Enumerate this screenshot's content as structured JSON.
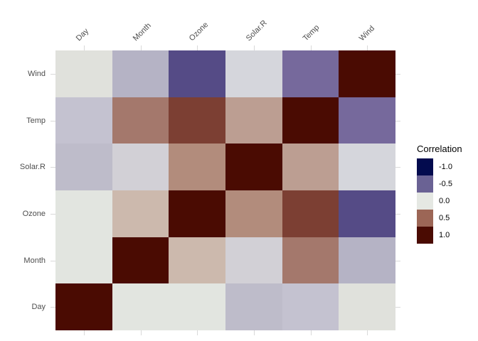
{
  "chart_data": {
    "type": "heatmap",
    "title": "",
    "x_categories": [
      "Day",
      "Month",
      "Ozone",
      "Solar.R",
      "Temp",
      "Wind"
    ],
    "y_categories": [
      "Wind",
      "Temp",
      "Solar.R",
      "Ozone",
      "Month",
      "Day"
    ],
    "values": [
      [
        0.03,
        -0.18,
        -0.6,
        -0.06,
        -0.46,
        1.0
      ],
      [
        -0.13,
        0.42,
        0.7,
        0.28,
        1.0,
        -0.46
      ],
      [
        -0.15,
        -0.08,
        0.35,
        1.0,
        0.28,
        -0.06
      ],
      [
        -0.01,
        0.16,
        1.0,
        0.35,
        0.7,
        -0.6
      ],
      [
        -0.01,
        1.0,
        0.16,
        -0.08,
        0.42,
        -0.18
      ],
      [
        1.0,
        -0.01,
        -0.01,
        -0.15,
        -0.13,
        0.03
      ]
    ],
    "cell_colors": [
      [
        "#e0e1dc",
        "#b5b3c5",
        "#554b86",
        "#d5d6dc",
        "#76699c",
        "#4a0b02"
      ],
      [
        "#c4c2d0",
        "#a4786c",
        "#7c3f33",
        "#bc9e92",
        "#4a0b02",
        "#76699c"
      ],
      [
        "#bebcca",
        "#d2d0d6",
        "#b28c7c",
        "#4a0b02",
        "#bc9e92",
        "#d5d6dc"
      ],
      [
        "#e2e5e0",
        "#ccb9ad",
        "#4a0b02",
        "#b28c7c",
        "#7c3f33",
        "#554b86"
      ],
      [
        "#e2e5e0",
        "#4a0b02",
        "#ccb9ad",
        "#d2d0d6",
        "#a4786c",
        "#b5b3c5"
      ],
      [
        "#4a0b02",
        "#e2e5e0",
        "#e2e5e0",
        "#bebcca",
        "#c4c2d0",
        "#e0e1dc"
      ]
    ],
    "legend": {
      "title": "Correlation",
      "entries": [
        {
          "label": "-1.0",
          "color": "#030b4e"
        },
        {
          "label": "-0.5",
          "color": "#6a6294"
        },
        {
          "label": "0.0",
          "color": "#e5e8e3"
        },
        {
          "label": "0.5",
          "color": "#9c6656"
        },
        {
          "label": "1.0",
          "color": "#4a0b02"
        }
      ],
      "position": "right"
    },
    "axes": {
      "x_label": "",
      "y_label": "",
      "tick_color": "#d9d9d9",
      "label_color": "#4d4d4d",
      "ticks_on_all_sides": true
    },
    "background": "#ffffff"
  }
}
